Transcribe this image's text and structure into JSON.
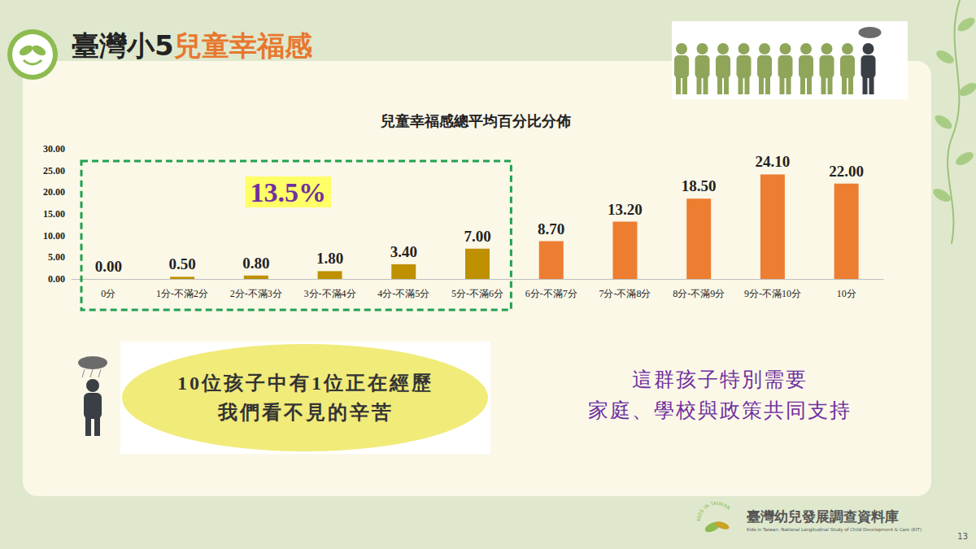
{
  "chart_data": {
    "type": "bar",
    "title": "兒童幸福感總平均百分比分佈",
    "categories": [
      "0分",
      "1分-不滿2分",
      "2分-不滿3分",
      "3分-不滿4分",
      "4分-不滿5分",
      "5分-不滿6分",
      "6分-不滿7分",
      "7分-不滿8分",
      "8分-不滿9分",
      "9分-不滿10分",
      "10分"
    ],
    "values": [
      0,
      0.5,
      0.8,
      1.8,
      3.4,
      7,
      8.7,
      13.2,
      18.5,
      24.1,
      22
    ],
    "value_labels": [
      "0.00",
      "0.50",
      "0.80",
      "1.80",
      "3.40",
      "7.00",
      "8.70",
      "13.20",
      "18.50",
      "24.10",
      "22.00"
    ],
    "colors": [
      "#bf9000",
      "#bf9000",
      "#bf9000",
      "#bf9000",
      "#bf9000",
      "#bf9000",
      "#ed7d31",
      "#ed7d31",
      "#ed7d31",
      "#ed7d31",
      "#ed7d31"
    ],
    "ylim": [
      0,
      30
    ],
    "yticks": [
      {
        "value": 0,
        "label": "0.00"
      },
      {
        "value": 5,
        "label": "5.00"
      },
      {
        "value": 10,
        "label": "10.00"
      },
      {
        "value": 15,
        "label": "15.00"
      },
      {
        "value": 20,
        "label": "20.00"
      },
      {
        "value": 25,
        "label": "25.00"
      },
      {
        "value": 30,
        "label": "30.00"
      }
    ],
    "grid": false,
    "data_labels": true,
    "annotation": "13.5%"
  },
  "slide": {
    "title_parts": [
      {
        "text": "臺灣小5",
        "color": "#222222"
      },
      {
        "text": "兒童幸福感",
        "color": "#e8772e"
      }
    ],
    "callout_lines": [
      "10位孩子中有1位正在經歷",
      "我們看不見的辛苦"
    ],
    "message_lines": [
      "這群孩子特別需要",
      "家庭、學校與政策共同支持"
    ],
    "footer": {
      "name": "臺灣幼兒發展調查資料庫",
      "subtitle": "Kids in Taiwan: National Longitudinal Study of Child Development & Care (KIT)",
      "logo_text": "KIDS IN TAIWAN"
    },
    "page_number": "13"
  }
}
